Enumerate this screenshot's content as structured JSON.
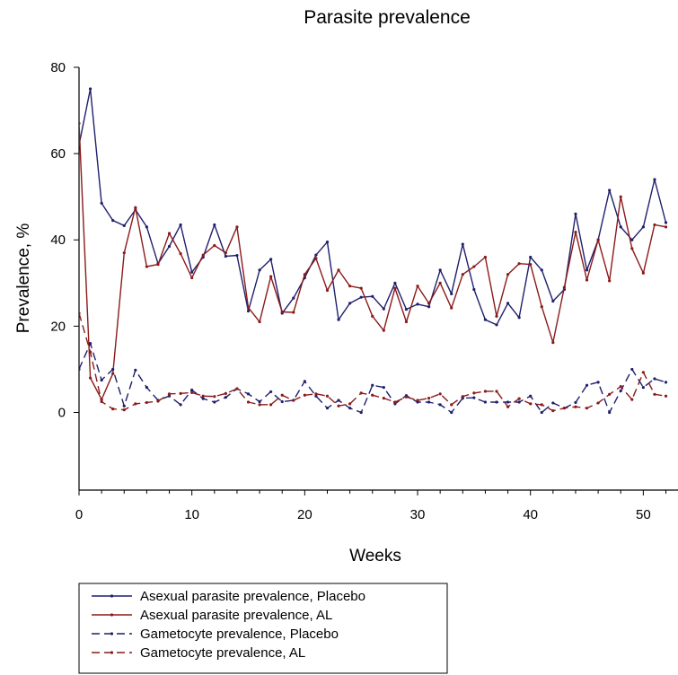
{
  "chart_data": {
    "type": "line",
    "title": "Parasite prevalence",
    "xlabel": "Weeks",
    "ylabel": "Prevalence, %",
    "xlim": [
      0,
      52
    ],
    "ylim": [
      -18,
      80
    ],
    "x_ticks": [
      0,
      10,
      20,
      30,
      40,
      50
    ],
    "y_ticks": [
      0,
      20,
      40,
      60,
      80
    ],
    "grid": false,
    "legend_position": "bottom-left",
    "series": [
      {
        "name": "Asexual parasite prevalence, Placebo",
        "color": "#1f1f6e",
        "dash": "solid",
        "x": [
          0,
          1,
          2,
          3,
          4,
          5,
          6,
          7,
          8,
          9,
          10,
          11,
          12,
          13,
          14,
          15,
          16,
          17,
          18,
          19,
          20,
          21,
          22,
          23,
          24,
          25,
          26,
          27,
          28,
          29,
          30,
          31,
          32,
          33,
          34,
          35,
          36,
          37,
          38,
          39,
          40,
          41,
          42,
          43,
          44,
          45,
          46,
          47,
          48,
          49,
          50,
          51,
          52
        ],
        "values": [
          62,
          75,
          48.5,
          44.5,
          43.3,
          47,
          43,
          34.5,
          38.5,
          43.5,
          32.5,
          36,
          43.5,
          36.2,
          36.4,
          23.5,
          33,
          35.5,
          23,
          26.5,
          31.2,
          36.5,
          39.5,
          21.5,
          25.3,
          26.7,
          26.9,
          24,
          30,
          23.9,
          25.1,
          24.5,
          33,
          27.5,
          39,
          28.5,
          21.5,
          20.3,
          25.3,
          22,
          36,
          33,
          25.8,
          28.5,
          46,
          33,
          40,
          51.5,
          43,
          40,
          43,
          54,
          44
        ]
      },
      {
        "name": "Asexual parasite prevalence, AL",
        "color": "#8b1a1a",
        "dash": "solid",
        "x": [
          0,
          1,
          2,
          3,
          4,
          5,
          6,
          7,
          8,
          9,
          10,
          11,
          12,
          13,
          14,
          15,
          16,
          17,
          18,
          19,
          20,
          21,
          22,
          23,
          24,
          25,
          26,
          27,
          28,
          29,
          30,
          31,
          32,
          33,
          34,
          35,
          36,
          37,
          38,
          39,
          40,
          41,
          42,
          43,
          44,
          45,
          46,
          47,
          48,
          49,
          50,
          51,
          52
        ],
        "values": [
          67,
          8,
          3,
          9,
          37,
          47.5,
          33.8,
          34.3,
          41.5,
          36.8,
          31.2,
          36.5,
          38.7,
          37,
          43,
          24.3,
          21,
          31.5,
          23.3,
          23.2,
          32,
          35.7,
          28.3,
          33,
          29.3,
          28.8,
          22.3,
          19,
          28.8,
          21,
          29.3,
          25.3,
          30,
          24.2,
          32,
          33.8,
          36,
          22.3,
          32,
          34.5,
          34.3,
          24.5,
          16.2,
          29,
          41.8,
          30.7,
          40,
          30.5,
          50,
          38,
          32.3,
          43.5,
          43
        ]
      },
      {
        "name": "Gametocyte prevalence, Placebo",
        "color": "#1f1f6e",
        "dash": "dashed",
        "x": [
          0,
          1,
          2,
          3,
          4,
          5,
          6,
          7,
          8,
          9,
          10,
          11,
          12,
          13,
          14,
          15,
          16,
          17,
          18,
          19,
          20,
          21,
          22,
          23,
          24,
          25,
          26,
          27,
          28,
          29,
          30,
          31,
          32,
          33,
          34,
          35,
          36,
          37,
          38,
          39,
          40,
          41,
          42,
          43,
          44,
          45,
          46,
          47,
          48,
          49,
          50,
          51,
          52
        ],
        "values": [
          10,
          16,
          7.5,
          10,
          1.5,
          9.8,
          5.8,
          2.8,
          3.8,
          1.8,
          5.2,
          3.2,
          2.4,
          3.5,
          5.5,
          4.3,
          2.5,
          4.8,
          2.5,
          2.8,
          7.2,
          3.8,
          1.0,
          2.8,
          1.0,
          0.0,
          6.3,
          5.8,
          2.0,
          3.9,
          2.4,
          2.4,
          1.8,
          0.0,
          3.3,
          3.4,
          2.4,
          2.4,
          2.4,
          2.4,
          3.8,
          0.0,
          2.2,
          1.0,
          2.3,
          6.3,
          7.0,
          0.0,
          5.0,
          10.0,
          5.8,
          7.8,
          7.0
        ]
      },
      {
        "name": "Gametocyte prevalence, AL",
        "color": "#8b1a1a",
        "dash": "dashed",
        "x": [
          0,
          1,
          2,
          3,
          4,
          5,
          6,
          7,
          8,
          9,
          10,
          11,
          12,
          13,
          14,
          15,
          16,
          17,
          18,
          19,
          20,
          21,
          22,
          23,
          24,
          25,
          26,
          27,
          28,
          29,
          30,
          31,
          32,
          33,
          34,
          35,
          36,
          37,
          38,
          39,
          40,
          41,
          42,
          43,
          44,
          45,
          46,
          47,
          48,
          49,
          50,
          51,
          52
        ],
        "values": [
          23,
          14,
          2.5,
          0.8,
          0.6,
          2.0,
          2.3,
          2.6,
          4.3,
          4.4,
          4.6,
          3.8,
          3.7,
          4.4,
          5.5,
          2.4,
          1.8,
          1.8,
          4.0,
          2.8,
          4.0,
          4.3,
          3.8,
          1.5,
          2.0,
          4.5,
          4.0,
          3.3,
          2.4,
          3.6,
          2.8,
          3.3,
          4.3,
          1.8,
          3.7,
          4.5,
          4.9,
          4.9,
          1.3,
          3.2,
          2.0,
          1.8,
          0.4,
          1.0,
          1.3,
          1.0,
          2.2,
          4.2,
          6.0,
          3.0,
          9.3,
          4.2,
          3.8
        ]
      }
    ]
  }
}
